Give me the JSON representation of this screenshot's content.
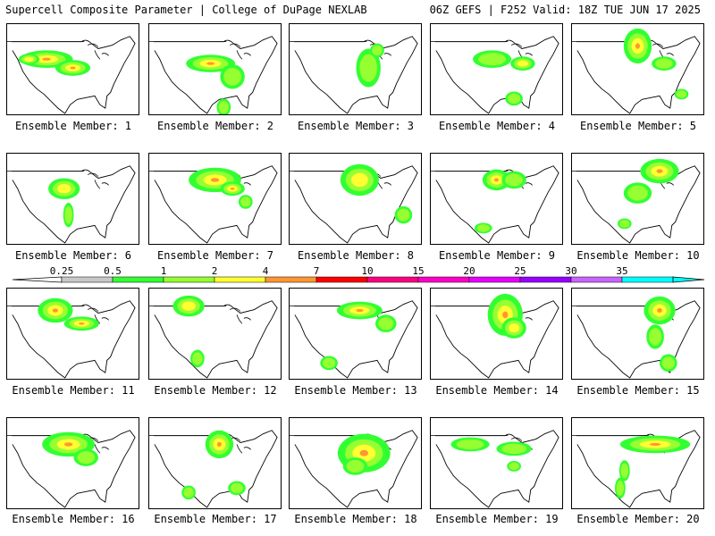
{
  "header": {
    "left": "Supercell Composite Parameter | College of DuPage NEXLAB",
    "right": "06Z GEFS | F252 Valid: 18Z TUE JUN 17 2025"
  },
  "panel_label_prefix": "Ensemble Member: ",
  "members": [
    {
      "n": "1",
      "blobs": [
        [
          45,
          40,
          30,
          10,
          3
        ],
        [
          75,
          50,
          20,
          9,
          3
        ],
        [
          25,
          40,
          12,
          6,
          2
        ]
      ]
    },
    {
      "n": "2",
      "blobs": [
        [
          70,
          45,
          28,
          10,
          3
        ],
        [
          95,
          60,
          14,
          14,
          1
        ],
        [
          85,
          95,
          8,
          10,
          1
        ]
      ]
    },
    {
      "n": "3",
      "blobs": [
        [
          90,
          50,
          14,
          22,
          1
        ],
        [
          100,
          30,
          8,
          8,
          1
        ]
      ]
    },
    {
      "n": "4",
      "blobs": [
        [
          70,
          40,
          22,
          10,
          1
        ],
        [
          105,
          45,
          14,
          8,
          2
        ],
        [
          95,
          85,
          10,
          8,
          1
        ]
      ]
    },
    {
      "n": "5",
      "blobs": [
        [
          75,
          25,
          16,
          20,
          3
        ],
        [
          105,
          45,
          14,
          8,
          1
        ],
        [
          125,
          80,
          8,
          6,
          1
        ]
      ]
    },
    {
      "n": "6",
      "blobs": [
        [
          65,
          40,
          18,
          12,
          2
        ],
        [
          70,
          70,
          6,
          14,
          1
        ]
      ]
    },
    {
      "n": "7",
      "blobs": [
        [
          75,
          30,
          30,
          14,
          3
        ],
        [
          95,
          40,
          14,
          8,
          3
        ],
        [
          110,
          55,
          8,
          8,
          1
        ]
      ]
    },
    {
      "n": "8",
      "blobs": [
        [
          80,
          30,
          22,
          18,
          2
        ],
        [
          130,
          70,
          10,
          10,
          1
        ]
      ]
    },
    {
      "n": "9",
      "blobs": [
        [
          75,
          30,
          16,
          12,
          3
        ],
        [
          95,
          30,
          14,
          10,
          1
        ],
        [
          60,
          85,
          10,
          6,
          1
        ]
      ]
    },
    {
      "n": "10",
      "blobs": [
        [
          100,
          20,
          22,
          14,
          3
        ],
        [
          75,
          45,
          16,
          12,
          1
        ],
        [
          60,
          80,
          8,
          6,
          1
        ]
      ]
    },
    {
      "n": "11",
      "blobs": [
        [
          55,
          25,
          20,
          14,
          3
        ],
        [
          85,
          40,
          20,
          8,
          3
        ]
      ]
    },
    {
      "n": "12",
      "blobs": [
        [
          45,
          20,
          18,
          12,
          2
        ],
        [
          55,
          80,
          8,
          10,
          1
        ]
      ]
    },
    {
      "n": "13",
      "blobs": [
        [
          80,
          25,
          26,
          10,
          3
        ],
        [
          110,
          40,
          12,
          10,
          1
        ],
        [
          45,
          85,
          10,
          8,
          1
        ]
      ]
    },
    {
      "n": "14",
      "blobs": [
        [
          85,
          30,
          20,
          24,
          3
        ],
        [
          95,
          45,
          14,
          12,
          2
        ]
      ]
    },
    {
      "n": "15",
      "blobs": [
        [
          100,
          25,
          18,
          16,
          3
        ],
        [
          95,
          55,
          10,
          14,
          1
        ],
        [
          110,
          85,
          10,
          10,
          1
        ]
      ]
    },
    {
      "n": "16",
      "blobs": [
        [
          70,
          30,
          30,
          14,
          3
        ],
        [
          90,
          45,
          14,
          10,
          1
        ]
      ]
    },
    {
      "n": "17",
      "blobs": [
        [
          80,
          30,
          16,
          16,
          3
        ],
        [
          100,
          80,
          10,
          8,
          1
        ],
        [
          45,
          85,
          8,
          8,
          1
        ]
      ]
    },
    {
      "n": "18",
      "blobs": [
        [
          85,
          40,
          30,
          22,
          3
        ],
        [
          75,
          55,
          14,
          10,
          1
        ]
      ]
    },
    {
      "n": "19",
      "blobs": [
        [
          45,
          30,
          22,
          8,
          1
        ],
        [
          95,
          35,
          20,
          8,
          1
        ],
        [
          95,
          55,
          8,
          6,
          1
        ]
      ]
    },
    {
      "n": "20",
      "blobs": [
        [
          95,
          30,
          40,
          10,
          3
        ],
        [
          55,
          80,
          6,
          12,
          1
        ],
        [
          60,
          60,
          6,
          12,
          1
        ]
      ]
    }
  ],
  "colorbar": {
    "labels": [
      "0.25",
      "0.5",
      "1",
      "2",
      "4",
      "7",
      "10",
      "15",
      "20",
      "25",
      "30",
      "35"
    ],
    "colors": [
      "#c8c8c8",
      "#32ff32",
      "#96ff32",
      "#ffff32",
      "#ff9632",
      "#ff0000",
      "#ff0080",
      "#ff00c8",
      "#e600ff",
      "#9600ff",
      "#c864ff",
      "#00ffff"
    ]
  },
  "shade_colors": [
    "#c8c8c8",
    "#32ff32",
    "#96ff32",
    "#ffff32",
    "#ff9632",
    "#ff0000"
  ]
}
